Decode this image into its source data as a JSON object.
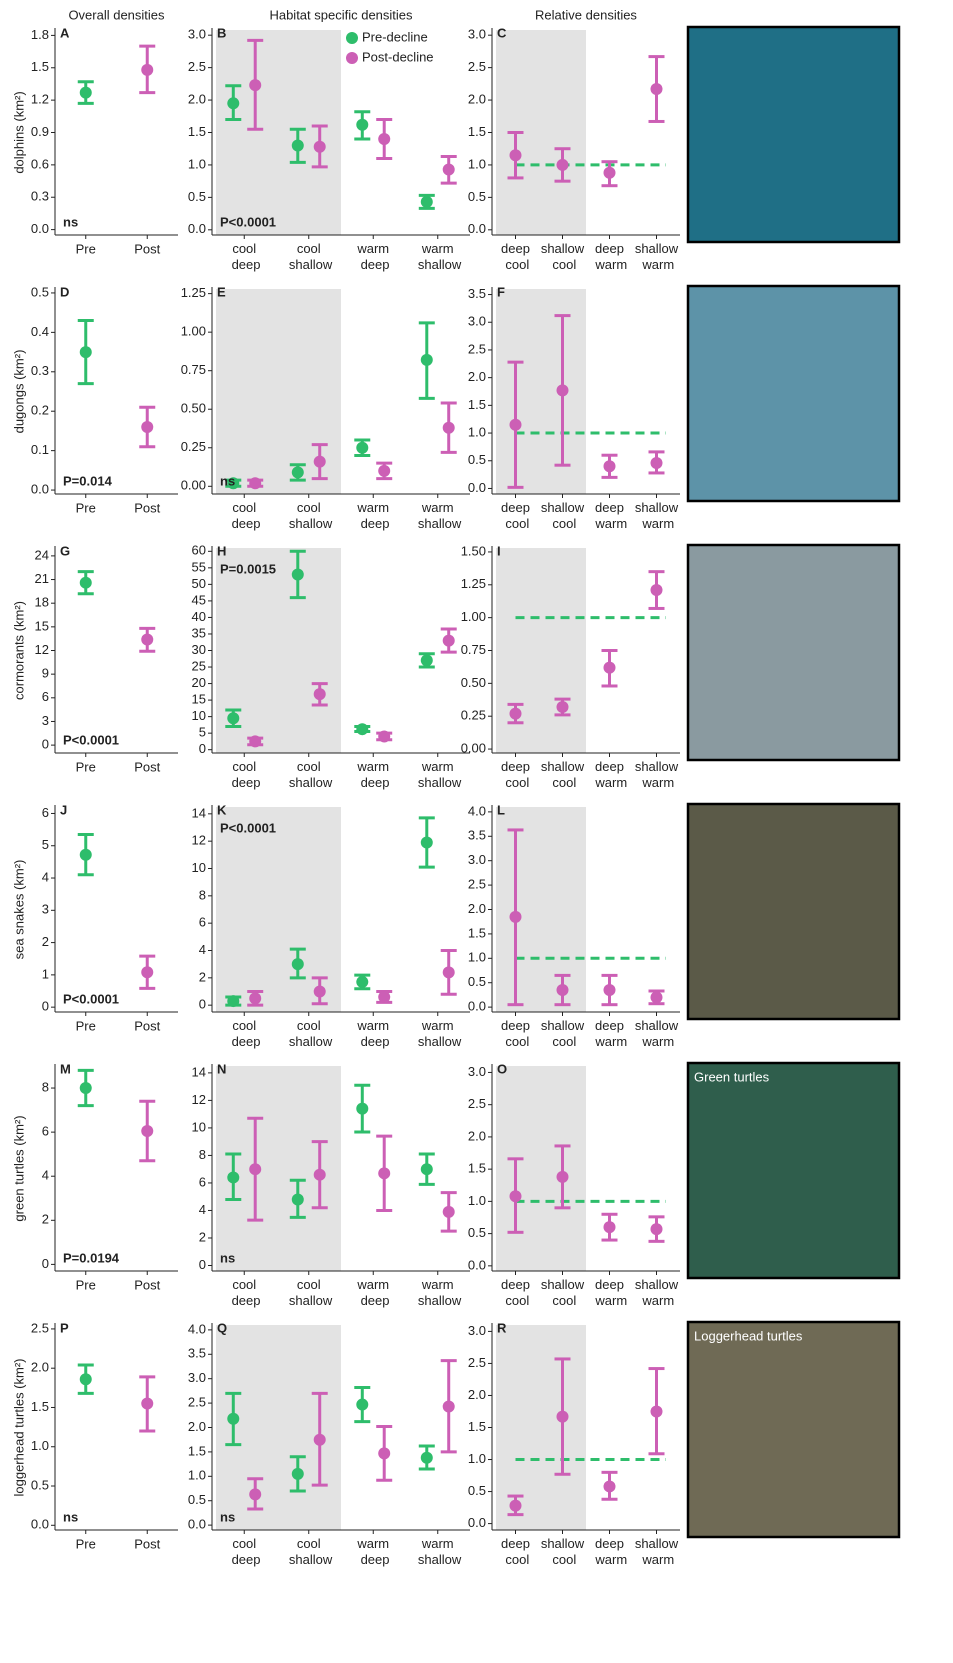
{
  "column_titles": [
    "Overall densities",
    "Habitat specific densities",
    "Relative densities"
  ],
  "photo_labels": [
    "Green turtles",
    "Loggerhead turtles"
  ],
  "chart_data": [
    {
      "type": "errorbar",
      "label": "A",
      "ylabel": "dolphins (km²)",
      "annotation": "ns",
      "annotation_corner": "bottom-left",
      "categories": [
        "Pre",
        "Post"
      ],
      "ylim": [
        -0.05,
        1.85
      ],
      "yticks": [
        {
          "value": 0,
          "label": "0.0"
        },
        0.3,
        0.6,
        0.9,
        1.2,
        1.5,
        1.8
      ],
      "series": [
        {
          "colors": [
            "#2ebd6b",
            "#cc5fb5"
          ],
          "values": [
            1.27,
            1.48
          ],
          "lower": [
            1.17,
            1.27
          ],
          "upper": [
            1.37,
            1.7
          ]
        }
      ]
    },
    {
      "type": "errorbar",
      "label": "B",
      "annotation": "P<0.0001",
      "annotation_corner": "bottom-left",
      "shaded": true,
      "legend": "top-right",
      "categories": [
        "cool deep",
        "cool shallow",
        "warm deep",
        "warm shallow"
      ],
      "ylim": [
        -0.08,
        3.08
      ],
      "yticks": [
        {
          "value": 0,
          "label": "0.0"
        },
        0.5,
        {
          "value": 1,
          "label": "1.0"
        },
        1.5,
        {
          "value": 2,
          "label": "2.0"
        },
        2.5,
        {
          "value": 3,
          "label": "3.0"
        }
      ],
      "series": [
        {
          "name": "Pre-decline",
          "color": "#2ebd6b",
          "values": [
            1.95,
            1.3,
            1.62,
            0.43
          ],
          "lower": [
            1.7,
            1.04,
            1.4,
            0.33
          ],
          "upper": [
            2.22,
            1.55,
            1.82,
            0.53
          ]
        },
        {
          "name": "Post-decline",
          "color": "#cc5fb5",
          "values": [
            2.23,
            1.28,
            1.4,
            0.93
          ],
          "lower": [
            1.55,
            0.97,
            1.1,
            0.72
          ],
          "upper": [
            2.92,
            1.6,
            1.7,
            1.13
          ]
        }
      ]
    },
    {
      "type": "errorbar",
      "label": "C",
      "shaded": true,
      "reference": 1,
      "reference_color": "#2ebd6b",
      "categories": [
        "deep cool",
        "shallow cool",
        "deep warm",
        "shallow warm"
      ],
      "ylim": [
        -0.08,
        3.08
      ],
      "yticks": [
        {
          "value": 0,
          "label": "0.0"
        },
        0.5,
        {
          "value": 1,
          "label": "1.0"
        },
        1.5,
        {
          "value": 2,
          "label": "2.0"
        },
        2.5,
        {
          "value": 3,
          "label": "3.0"
        }
      ],
      "series": [
        {
          "color": "#cc5fb5",
          "values": [
            1.15,
            1.0,
            0.88,
            2.17
          ],
          "lower": [
            0.8,
            0.75,
            0.68,
            1.67
          ],
          "upper": [
            1.5,
            1.25,
            1.05,
            2.67
          ]
        }
      ]
    },
    {
      "type": "errorbar",
      "label": "D",
      "ylabel": "dugongs (km²)",
      "annotation": "P=0.014",
      "annotation_corner": "bottom-left",
      "categories": [
        "Pre",
        "Post"
      ],
      "ylim": [
        -0.01,
        0.51
      ],
      "yticks": [
        {
          "value": 0,
          "label": "0.0"
        },
        0.1,
        0.2,
        0.3,
        0.4,
        0.5
      ],
      "series": [
        {
          "colors": [
            "#2ebd6b",
            "#cc5fb5"
          ],
          "values": [
            0.35,
            0.16
          ],
          "lower": [
            0.27,
            0.11
          ],
          "upper": [
            0.43,
            0.21
          ]
        }
      ]
    },
    {
      "type": "errorbar",
      "label": "E",
      "annotation": "ns",
      "annotation_corner": "bottom-left",
      "shaded": true,
      "categories": [
        "cool deep",
        "cool shallow",
        "warm deep",
        "warm shallow"
      ],
      "ylim": [
        -0.05,
        1.28
      ],
      "yticks": [
        {
          "value": 0,
          "label": "0.00"
        },
        0.25,
        {
          "value": 0.5,
          "label": "0.50"
        },
        0.75,
        {
          "value": 1,
          "label": "1.00"
        },
        1.25
      ],
      "series": [
        {
          "color": "#2ebd6b",
          "values": [
            0.02,
            0.09,
            0.25,
            0.82
          ],
          "lower": [
            0.0,
            0.04,
            0.2,
            0.57
          ],
          "upper": [
            0.04,
            0.14,
            0.3,
            1.06
          ]
        },
        {
          "color": "#cc5fb5",
          "values": [
            0.02,
            0.16,
            0.1,
            0.38
          ],
          "lower": [
            0.0,
            0.05,
            0.05,
            0.22
          ],
          "upper": [
            0.04,
            0.27,
            0.15,
            0.54
          ]
        }
      ]
    },
    {
      "type": "errorbar",
      "label": "F",
      "shaded": true,
      "reference": 1,
      "reference_color": "#2ebd6b",
      "categories": [
        "deep cool",
        "shallow cool",
        "deep warm",
        "shallow warm"
      ],
      "ylim": [
        -0.1,
        3.6
      ],
      "yticks": [
        {
          "value": 0,
          "label": "0.0"
        },
        0.5,
        {
          "value": 1,
          "label": "1.0"
        },
        1.5,
        {
          "value": 2,
          "label": "2.0"
        },
        2.5,
        {
          "value": 3,
          "label": "3.0"
        },
        3.5
      ],
      "series": [
        {
          "color": "#cc5fb5",
          "values": [
            1.15,
            1.77,
            0.4,
            0.46
          ],
          "lower": [
            0.02,
            0.42,
            0.2,
            0.28
          ],
          "upper": [
            2.28,
            3.12,
            0.6,
            0.66
          ]
        }
      ]
    },
    {
      "type": "errorbar",
      "label": "G",
      "ylabel": "cormorants (km²)",
      "annotation": "P<0.0001",
      "annotation_corner": "bottom-left",
      "categories": [
        "Pre",
        "Post"
      ],
      "ylim": [
        -1,
        25
      ],
      "yticks": [
        0,
        3,
        6,
        9,
        12,
        15,
        18,
        21,
        24
      ],
      "series": [
        {
          "colors": [
            "#2ebd6b",
            "#cc5fb5"
          ],
          "values": [
            20.6,
            13.4
          ],
          "lower": [
            19.2,
            11.9
          ],
          "upper": [
            22.0,
            14.8
          ]
        }
      ]
    },
    {
      "type": "errorbar",
      "label": "H",
      "annotation": "P=0.0015",
      "annotation_corner": "top-left",
      "shaded": true,
      "categories": [
        "cool deep",
        "cool shallow",
        "warm deep",
        "warm shallow"
      ],
      "ylim": [
        -1,
        61
      ],
      "yticks": [
        0,
        5,
        10,
        15,
        20,
        25,
        30,
        35,
        40,
        45,
        50,
        55,
        60
      ],
      "series": [
        {
          "color": "#2ebd6b",
          "values": [
            9.5,
            53,
            6.2,
            27
          ],
          "lower": [
            7.0,
            46,
            5.5,
            25
          ],
          "upper": [
            12.0,
            60,
            7.0,
            29
          ]
        },
        {
          "color": "#cc5fb5",
          "values": [
            2.5,
            16.8,
            4.0,
            33
          ],
          "lower": [
            1.5,
            13.5,
            3.0,
            29.5
          ],
          "upper": [
            3.5,
            20,
            5.0,
            36.5
          ]
        }
      ]
    },
    {
      "type": "errorbar",
      "label": "I",
      "shaded": true,
      "reference": 1,
      "reference_color": "#2ebd6b",
      "categories": [
        "deep cool",
        "shallow cool",
        "deep warm",
        "shallow warm"
      ],
      "ylim": [
        -0.03,
        1.53
      ],
      "yticks": [
        {
          "value": 0,
          "label": "0.00"
        },
        0.25,
        {
          "value": 0.5,
          "label": "0.50"
        },
        0.75,
        {
          "value": 1,
          "label": "1.00"
        },
        1.25,
        {
          "value": 1.5,
          "label": "1.50"
        }
      ],
      "series": [
        {
          "color": "#cc5fb5",
          "values": [
            0.27,
            0.32,
            0.62,
            1.21
          ],
          "lower": [
            0.2,
            0.26,
            0.48,
            1.07
          ],
          "upper": [
            0.34,
            0.38,
            0.75,
            1.35
          ]
        }
      ]
    },
    {
      "type": "errorbar",
      "label": "J",
      "ylabel": "sea snakes (km²)",
      "annotation": "P<0.0001",
      "annotation_corner": "bottom-left",
      "categories": [
        "Pre",
        "Post"
      ],
      "ylim": [
        -0.15,
        6.2
      ],
      "yticks": [
        0,
        1,
        2,
        3,
        4,
        5,
        6
      ],
      "series": [
        {
          "colors": [
            "#2ebd6b",
            "#cc5fb5"
          ],
          "values": [
            4.72,
            1.08
          ],
          "lower": [
            4.1,
            0.58
          ],
          "upper": [
            5.35,
            1.58
          ]
        }
      ]
    },
    {
      "type": "errorbar",
      "label": "K",
      "annotation": "P<0.0001",
      "annotation_corner": "top-left",
      "shaded": true,
      "categories": [
        "cool deep",
        "cool shallow",
        "warm deep",
        "warm shallow"
      ],
      "ylim": [
        -0.5,
        14.5
      ],
      "yticks": [
        0,
        2,
        4,
        6,
        8,
        10,
        12,
        14
      ],
      "series": [
        {
          "color": "#2ebd6b",
          "values": [
            0.3,
            3.0,
            1.7,
            11.9
          ],
          "lower": [
            0.0,
            2.0,
            1.2,
            10.1
          ],
          "upper": [
            0.6,
            4.1,
            2.2,
            13.7
          ]
        },
        {
          "color": "#cc5fb5",
          "values": [
            0.5,
            1.0,
            0.6,
            2.4
          ],
          "lower": [
            0.0,
            0.1,
            0.2,
            0.8
          ],
          "upper": [
            1.0,
            2.0,
            1.0,
            4.0
          ]
        }
      ]
    },
    {
      "type": "errorbar",
      "label": "L",
      "shaded": true,
      "reference": 1,
      "reference_color": "#2ebd6b",
      "categories": [
        "deep cool",
        "shallow cool",
        "deep warm",
        "shallow warm"
      ],
      "ylim": [
        -0.1,
        4.1
      ],
      "yticks": [
        {
          "value": 0,
          "label": "0.0"
        },
        0.5,
        {
          "value": 1,
          "label": "1.0"
        },
        1.5,
        {
          "value": 2,
          "label": "2.0"
        },
        2.5,
        {
          "value": 3,
          "label": "3.0"
        },
        3.5,
        {
          "value": 4,
          "label": "4.0"
        }
      ],
      "series": [
        {
          "color": "#cc5fb5",
          "values": [
            1.85,
            0.35,
            0.35,
            0.2
          ],
          "lower": [
            0.05,
            0.05,
            0.05,
            0.07
          ],
          "upper": [
            3.63,
            0.65,
            0.65,
            0.33
          ]
        }
      ]
    },
    {
      "type": "errorbar",
      "label": "M",
      "ylabel": "green turtles (km²)",
      "annotation": "P=0.0194",
      "annotation_corner": "bottom-left",
      "categories": [
        "Pre",
        "Post"
      ],
      "ylim": [
        -0.3,
        9.0
      ],
      "yticks": [
        0,
        2,
        4,
        6,
        8
      ],
      "series": [
        {
          "colors": [
            "#2ebd6b",
            "#cc5fb5"
          ],
          "values": [
            8.0,
            6.05
          ],
          "lower": [
            7.2,
            4.7
          ],
          "upper": [
            8.8,
            7.4
          ]
        }
      ]
    },
    {
      "type": "errorbar",
      "label": "N",
      "annotation": "ns",
      "annotation_corner": "bottom-left",
      "shaded": true,
      "categories": [
        "cool deep",
        "cool shallow",
        "warm deep",
        "warm shallow"
      ],
      "ylim": [
        -0.4,
        14.5
      ],
      "yticks": [
        0,
        2,
        4,
        6,
        8,
        10,
        12,
        14
      ],
      "series": [
        {
          "color": "#2ebd6b",
          "values": [
            6.4,
            4.8,
            11.4,
            7.0
          ],
          "lower": [
            4.8,
            3.5,
            9.7,
            5.9
          ],
          "upper": [
            8.1,
            6.2,
            13.1,
            8.1
          ]
        },
        {
          "color": "#cc5fb5",
          "values": [
            7.0,
            6.6,
            6.7,
            3.9
          ],
          "lower": [
            3.3,
            4.2,
            4.0,
            2.5
          ],
          "upper": [
            10.7,
            9.0,
            9.4,
            5.3
          ]
        }
      ]
    },
    {
      "type": "errorbar",
      "label": "O",
      "shaded": true,
      "reference": 1,
      "reference_color": "#2ebd6b",
      "categories": [
        "deep cool",
        "shallow cool",
        "deep warm",
        "shallow warm"
      ],
      "ylim": [
        -0.08,
        3.1
      ],
      "yticks": [
        {
          "value": 0,
          "label": "0.0"
        },
        0.5,
        {
          "value": 1,
          "label": "1.0"
        },
        1.5,
        {
          "value": 2,
          "label": "2.0"
        },
        2.5,
        {
          "value": 3,
          "label": "3.0"
        }
      ],
      "series": [
        {
          "color": "#cc5fb5",
          "values": [
            1.08,
            1.38,
            0.6,
            0.57
          ],
          "lower": [
            0.52,
            0.9,
            0.4,
            0.38
          ],
          "upper": [
            1.66,
            1.86,
            0.8,
            0.76
          ]
        }
      ]
    },
    {
      "type": "errorbar",
      "label": "P",
      "ylabel": "loggerhead turtles (km²)",
      "annotation": "ns",
      "annotation_corner": "bottom-left",
      "categories": [
        "Pre",
        "Post"
      ],
      "ylim": [
        -0.06,
        2.55
      ],
      "yticks": [
        {
          "value": 0,
          "label": "0.0"
        },
        0.5,
        {
          "value": 1,
          "label": "1.0"
        },
        1.5,
        {
          "value": 2,
          "label": "2.0"
        },
        2.5
      ],
      "series": [
        {
          "colors": [
            "#2ebd6b",
            "#cc5fb5"
          ],
          "values": [
            1.86,
            1.55
          ],
          "lower": [
            1.68,
            1.2
          ],
          "upper": [
            2.04,
            1.89
          ]
        }
      ]
    },
    {
      "type": "errorbar",
      "label": "Q",
      "annotation": "ns",
      "annotation_corner": "bottom-left",
      "shaded": true,
      "categories": [
        "cool deep",
        "cool shallow",
        "warm deep",
        "warm shallow"
      ],
      "ylim": [
        -0.1,
        4.1
      ],
      "yticks": [
        {
          "value": 0,
          "label": "0.0"
        },
        0.5,
        {
          "value": 1,
          "label": "1.0"
        },
        1.5,
        {
          "value": 2,
          "label": "2.0"
        },
        2.5,
        {
          "value": 3,
          "label": "3.0"
        },
        3.5,
        {
          "value": 4,
          "label": "4.0"
        }
      ],
      "series": [
        {
          "color": "#2ebd6b",
          "values": [
            2.18,
            1.05,
            2.47,
            1.38
          ],
          "lower": [
            1.65,
            0.7,
            2.12,
            1.15
          ],
          "upper": [
            2.7,
            1.4,
            2.82,
            1.62
          ]
        },
        {
          "color": "#cc5fb5",
          "values": [
            0.63,
            1.75,
            1.47,
            2.43
          ],
          "lower": [
            0.33,
            0.82,
            0.92,
            1.5
          ],
          "upper": [
            0.95,
            2.7,
            2.02,
            3.37
          ]
        }
      ]
    },
    {
      "type": "errorbar",
      "label": "R",
      "shaded": true,
      "reference": 1,
      "reference_color": "#2ebd6b",
      "categories": [
        "deep cool",
        "shallow cool",
        "deep warm",
        "shallow warm"
      ],
      "ylim": [
        -0.1,
        3.1
      ],
      "yticks": [
        {
          "value": 0,
          "label": "0.0"
        },
        0.5,
        {
          "value": 1,
          "label": "1.0"
        },
        1.5,
        {
          "value": 2,
          "label": "2.0"
        },
        2.5,
        {
          "value": 3,
          "label": "3.0"
        }
      ],
      "series": [
        {
          "color": "#cc5fb5",
          "values": [
            0.28,
            1.67,
            0.58,
            1.75
          ],
          "lower": [
            0.14,
            0.77,
            0.38,
            1.09
          ],
          "upper": [
            0.43,
            2.57,
            0.8,
            2.42
          ]
        }
      ]
    }
  ]
}
